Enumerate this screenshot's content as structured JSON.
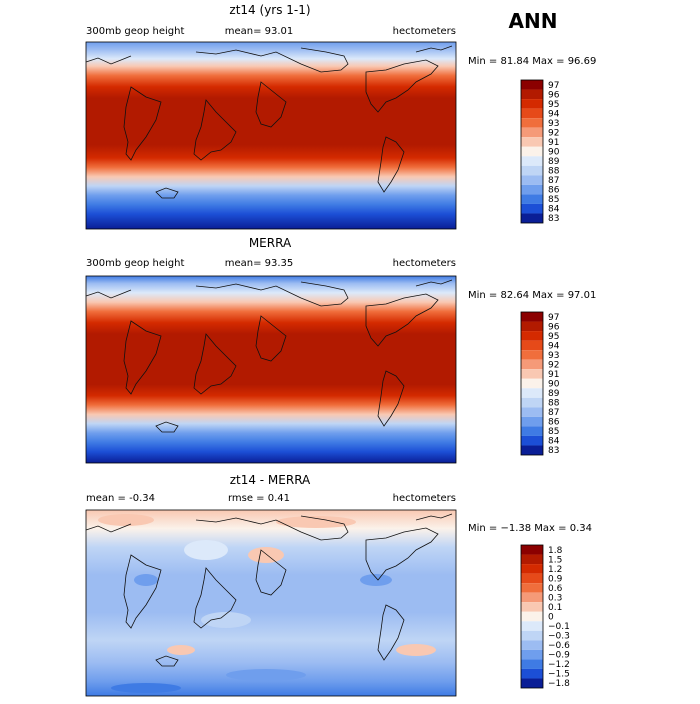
{
  "season": "ANN",
  "panels": [
    {
      "title": "zt14 (yrs 1-1)",
      "left": "300mb geop height",
      "center": "mean=  93.01",
      "right": "hectometers",
      "stats": "Min =  81.84 Max =  96.69",
      "levels": [
        "97",
        "96",
        "95",
        "94",
        "93",
        "92",
        "91",
        "90",
        "89",
        "88",
        "87",
        "86",
        "85",
        "84",
        "83"
      ],
      "colors": [
        "#8B0000",
        "#B21A00",
        "#D42A00",
        "#E64A19",
        "#F06E3C",
        "#F59A78",
        "#F9C8B2",
        "#FBF2EA",
        "#DCE9FA",
        "#BFD5F5",
        "#9CBCF2",
        "#6F9EED",
        "#3F7BE4",
        "#1C4FD6",
        "#0A1E96"
      ]
    },
    {
      "title": "MERRA",
      "left": "300mb geop height",
      "center": "mean=  93.35",
      "right": "hectometers",
      "stats": "Min =  82.64 Max =  97.01",
      "levels": [
        "97",
        "96",
        "95",
        "94",
        "93",
        "92",
        "91",
        "90",
        "89",
        "88",
        "87",
        "86",
        "85",
        "84",
        "83"
      ],
      "colors": [
        "#8B0000",
        "#B21A00",
        "#D42A00",
        "#E64A19",
        "#F06E3C",
        "#F59A78",
        "#F9C8B2",
        "#FBF2EA",
        "#DCE9FA",
        "#BFD5F5",
        "#9CBCF2",
        "#6F9EED",
        "#3F7BE4",
        "#1C4FD6",
        "#0A1E96"
      ]
    },
    {
      "title": "zt14 - MERRA",
      "left": "mean =   -0.34",
      "center": "rmse =    0.41",
      "right": "hectometers",
      "stats": "Min = −1.38 Max =   0.34",
      "levels": [
        "1.8",
        "1.5",
        "1.2",
        "0.9",
        "0.6",
        "0.3",
        "0.1",
        "0",
        "−0.1",
        "−0.3",
        "−0.6",
        "−0.9",
        "−1.2",
        "−1.5",
        "−1.8"
      ],
      "colors": [
        "#8B0000",
        "#B21A00",
        "#D42A00",
        "#E64A19",
        "#F06E3C",
        "#F59A78",
        "#F9C8B2",
        "#FBF2EA",
        "#DCE9FA",
        "#BFD5F5",
        "#9CBCF2",
        "#6F9EED",
        "#3F7BE4",
        "#1C4FD6",
        "#0A1E96"
      ]
    }
  ],
  "chart_data": [
    {
      "type": "heatmap",
      "title": "zt14 (yrs 1-1)",
      "variable": "300mb geop height",
      "units": "hectometers",
      "mean": 93.01,
      "min": 81.84,
      "max": 96.69,
      "colorbar_levels": [
        83,
        84,
        85,
        86,
        87,
        88,
        89,
        90,
        91,
        92,
        93,
        94,
        95,
        96,
        97
      ]
    },
    {
      "type": "heatmap",
      "title": "MERRA",
      "variable": "300mb geop height",
      "units": "hectometers",
      "mean": 93.35,
      "min": 82.64,
      "max": 97.01,
      "colorbar_levels": [
        83,
        84,
        85,
        86,
        87,
        88,
        89,
        90,
        91,
        92,
        93,
        94,
        95,
        96,
        97
      ]
    },
    {
      "type": "heatmap",
      "title": "zt14 - MERRA",
      "units": "hectometers",
      "mean": -0.34,
      "rmse": 0.41,
      "min": -1.38,
      "max": 0.34,
      "colorbar_levels": [
        -1.8,
        -1.5,
        -1.2,
        -0.9,
        -0.6,
        -0.3,
        -0.1,
        0,
        0.1,
        0.3,
        0.6,
        0.9,
        1.2,
        1.5,
        1.8
      ]
    }
  ]
}
